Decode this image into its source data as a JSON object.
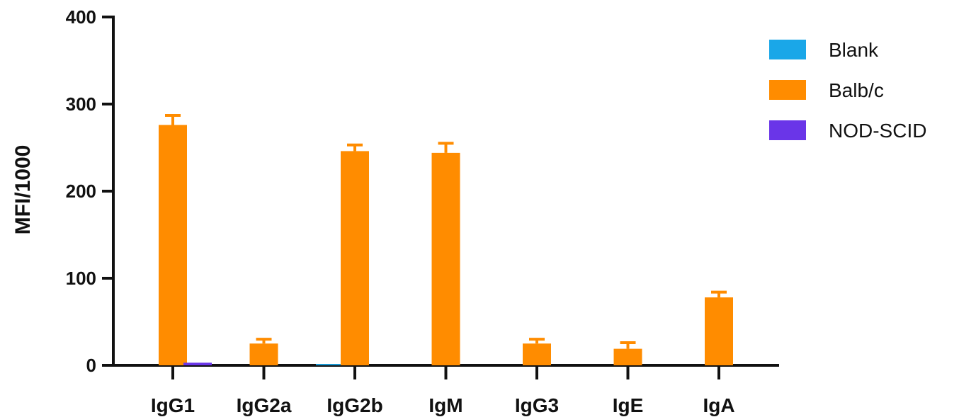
{
  "chart_data": {
    "type": "bar",
    "title": "",
    "xlabel": "",
    "ylabel": "MFI/1000",
    "ylim": [
      0,
      400
    ],
    "yticks": [
      0,
      100,
      200,
      300,
      400
    ],
    "grid": false,
    "legend_position": "top-right",
    "categories": [
      "IgG1",
      "IgG2a",
      "IgG2b",
      "IgM",
      "IgG3",
      "IgE",
      "IgA"
    ],
    "series": [
      {
        "name": "Blank",
        "color": "#1aa7e8",
        "values": [
          0,
          0,
          1.5,
          0,
          0,
          0,
          0
        ],
        "errors": [
          0,
          0,
          0,
          0,
          0,
          0,
          0
        ]
      },
      {
        "name": "Balb/c",
        "color": "#ff8c00",
        "values": [
          276,
          25,
          246,
          244,
          25,
          19,
          78
        ],
        "errors": [
          11,
          5,
          7,
          11,
          5,
          7,
          6
        ]
      },
      {
        "name": "NOD-SCID",
        "color": "#6a35e8",
        "values": [
          3,
          0,
          0,
          0,
          0,
          0,
          0
        ],
        "errors": [
          0,
          0,
          0,
          0,
          0,
          0,
          0
        ]
      }
    ]
  }
}
